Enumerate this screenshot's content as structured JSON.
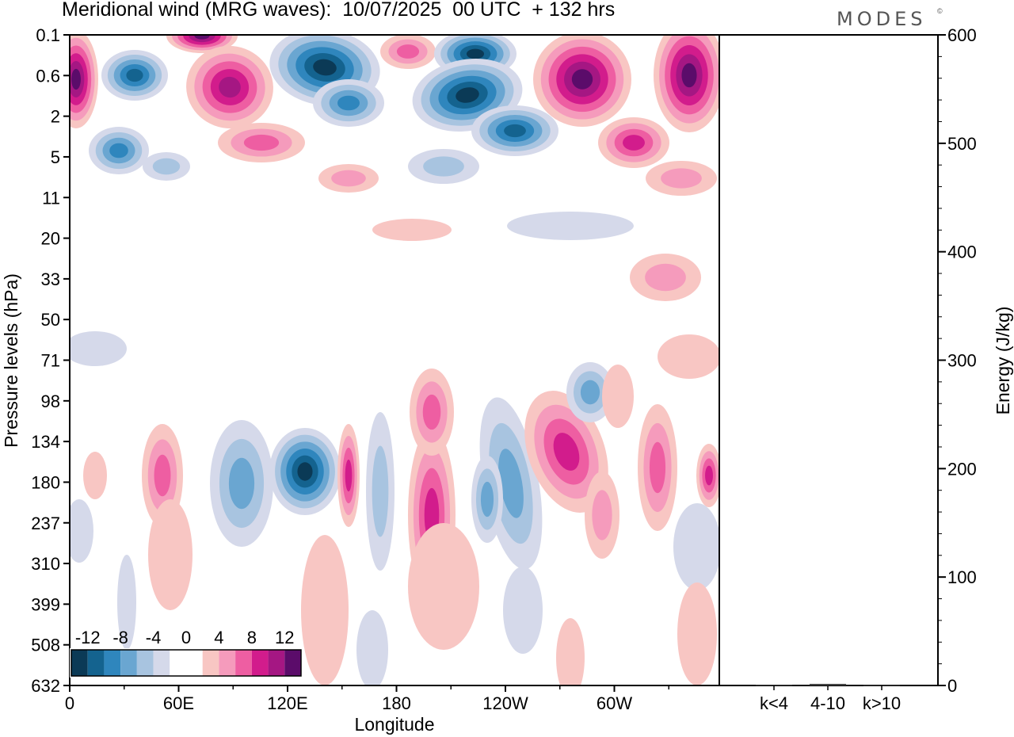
{
  "title": "Meridional wind (MRG waves):  10/07/2025  00 UTC  + 132 hrs",
  "logo": "MODES",
  "logo_mark": "©",
  "colors": {
    "neg": [
      "#0b3a56",
      "#14638f",
      "#2f86bd",
      "#6aa6d1",
      "#a8c4e0",
      "#d5d9ea"
    ],
    "pos": [
      "#f8c6c3",
      "#f59bbc",
      "#ee5ea2",
      "#d21c8c",
      "#a51783",
      "#5b0c6a"
    ]
  },
  "chart_data": [
    {
      "type": "heatmap",
      "title": "Meridional wind (MRG waves):  10/07/2025  00 UTC  + 132 hrs",
      "xlabel": "Longitude",
      "ylabel": "Pressure levels (hPa)",
      "x_ticks": [
        "0",
        "60E",
        "120E",
        "180",
        "120W",
        "60W"
      ],
      "y_ticks": [
        "0.1",
        "0.6",
        "2",
        "5",
        "11",
        "20",
        "33",
        "50",
        "71",
        "98",
        "134",
        "180",
        "237",
        "310",
        "399",
        "508",
        "632"
      ],
      "colorbar": {
        "labels": [
          "-12",
          "-8",
          "-4",
          "0",
          "4",
          "8",
          "12"
        ],
        "levels": [
          -14,
          -12,
          -10,
          -8,
          -6,
          -4,
          -2,
          2,
          4,
          6,
          8,
          10,
          12,
          14
        ]
      },
      "grid": false
    },
    {
      "type": "bar",
      "categories": [
        "k<4",
        "4-10",
        "k>10"
      ],
      "values": [
        0.5,
        1.5,
        0.3
      ],
      "ylabel": "Energy (J/kg)",
      "ylim": [
        0,
        600
      ],
      "y_ticks": [
        "0",
        "100",
        "200",
        "300",
        "400",
        "500",
        "600"
      ]
    }
  ]
}
